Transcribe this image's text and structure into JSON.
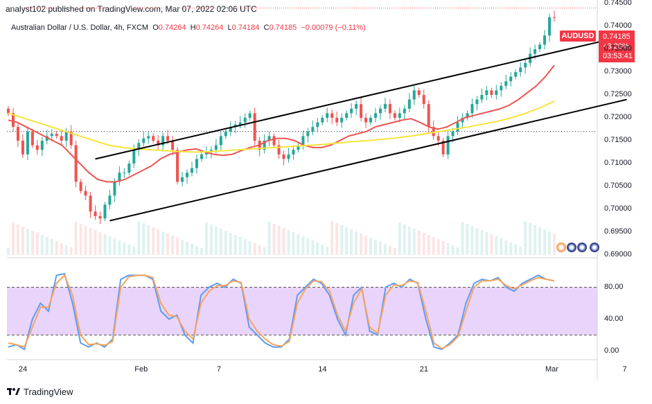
{
  "header": {
    "publisher": "analyst102 published on TradingView.com, Mar 07, 2022 02:06 UTC"
  },
  "symbol_line": {
    "name": "Australian Dollar / U.S. Dollar, 4h, FXCM",
    "o_label": "O",
    "o": "0.74264",
    "h_label": "H",
    "h": "0.74264",
    "l_label": "L",
    "l": "0.74184",
    "c_label": "C",
    "c": "0.74185",
    "change": "−0.00079 (−0.11%)"
  },
  "price_tag": {
    "ticker": "AUDUSD",
    "price": "0.74185",
    "change": "+3.20%",
    "countdown": "03:53:41"
  },
  "footer": {
    "brand": "TradingView"
  },
  "colors": {
    "up": "#26a69a",
    "down": "#ef5350",
    "ema_fast": "#ef5350",
    "ema_slow": "#f5e43a",
    "stoch_k": "#5b9cf6",
    "stoch_d": "#f7a35c",
    "stoch_band": "#e1c6f9",
    "trendline": "#000000"
  },
  "chart_data": [
    {
      "type": "candlestick",
      "title": "",
      "timeframe": "4h",
      "xlabel": "",
      "ylabel": "",
      "ylim": [
        0.69,
        0.745
      ],
      "y_ticks": [
        "0.74500",
        "0.74000",
        "0.73500",
        "0.73000",
        "0.72500",
        "0.72000",
        "0.71500",
        "0.71000",
        "0.70500",
        "0.70000",
        "0.69500",
        "0.69000"
      ],
      "y_tick_values": [
        0.745,
        0.74,
        0.735,
        0.73,
        0.725,
        0.72,
        0.715,
        0.71,
        0.705,
        0.7,
        0.695,
        0.69
      ],
      "x_ticks": [
        "24",
        "Feb",
        "7",
        "14",
        "21",
        "Mar",
        "7"
      ],
      "x_tick_index": [
        3,
        27,
        44,
        65,
        86,
        112,
        128
      ],
      "closes": [
        0.721,
        0.718,
        0.715,
        0.712,
        0.717,
        0.714,
        0.713,
        0.715,
        0.716,
        0.7165,
        0.716,
        0.715,
        0.717,
        0.714,
        0.706,
        0.704,
        0.703,
        0.6995,
        0.6985,
        0.698,
        0.701,
        0.703,
        0.706,
        0.708,
        0.708,
        0.71,
        0.713,
        0.7145,
        0.7155,
        0.716,
        0.715,
        0.714,
        0.716,
        0.715,
        0.713,
        0.706,
        0.707,
        0.708,
        0.709,
        0.711,
        0.712,
        0.7125,
        0.713,
        0.714,
        0.716,
        0.717,
        0.718,
        0.7185,
        0.719,
        0.72,
        0.721,
        0.715,
        0.713,
        0.715,
        0.716,
        0.714,
        0.712,
        0.711,
        0.712,
        0.713,
        0.714,
        0.716,
        0.717,
        0.718,
        0.719,
        0.72,
        0.721,
        0.72,
        0.719,
        0.72,
        0.721,
        0.722,
        0.723,
        0.72,
        0.719,
        0.72,
        0.721,
        0.722,
        0.723,
        0.721,
        0.72,
        0.721,
        0.722,
        0.724,
        0.726,
        0.725,
        0.723,
        0.718,
        0.716,
        0.715,
        0.712,
        0.716,
        0.717,
        0.719,
        0.72,
        0.721,
        0.723,
        0.724,
        0.725,
        0.726,
        0.725,
        0.726,
        0.727,
        0.728,
        0.729,
        0.73,
        0.731,
        0.732,
        0.734,
        0.735,
        0.736,
        0.738,
        0.742,
        0.74185
      ],
      "series": [
        {
          "name": "",
          "role": "ema_fast",
          "values": [
            0.7195,
            0.719,
            0.718,
            0.717,
            0.716,
            0.715,
            0.714,
            0.712,
            0.71,
            0.708,
            0.7065,
            0.706,
            0.706,
            0.7065,
            0.7075,
            0.7085,
            0.7095,
            0.711,
            0.712,
            0.7125,
            0.713,
            0.7132,
            0.7125,
            0.712,
            0.7118,
            0.712,
            0.7128,
            0.7135,
            0.714,
            0.715,
            0.7155,
            0.7155,
            0.715,
            0.714,
            0.7135,
            0.7135,
            0.714,
            0.715,
            0.716,
            0.7165,
            0.717,
            0.718,
            0.7185,
            0.719,
            0.7195,
            0.7198,
            0.719,
            0.718,
            0.7175,
            0.718,
            0.719,
            0.72,
            0.7205,
            0.721,
            0.7215,
            0.722,
            0.7228,
            0.724,
            0.7255,
            0.727,
            0.729,
            0.7315
          ]
        },
        {
          "name": "",
          "role": "ema_slow",
          "values": [
            0.721,
            0.72,
            0.719,
            0.718,
            0.717,
            0.716,
            0.715,
            0.714,
            0.7135,
            0.7132,
            0.713,
            0.7128,
            0.7126,
            0.7125,
            0.7126,
            0.7128,
            0.713,
            0.7132,
            0.7134,
            0.7136,
            0.7138,
            0.714,
            0.7142,
            0.7145,
            0.7148,
            0.715,
            0.7153,
            0.7156,
            0.716,
            0.7165,
            0.717,
            0.7175,
            0.718,
            0.7186,
            0.7192,
            0.72,
            0.721,
            0.7222,
            0.7236
          ]
        }
      ],
      "channel": [
        {
          "name": "upper",
          "points": [
            [
              18,
              0.711
            ],
            [
              128,
              0.738
            ]
          ]
        },
        {
          "name": "lower",
          "points": [
            [
              21,
              0.6975
            ],
            [
              128,
              0.724
            ]
          ]
        }
      ],
      "dotted_line": 0.717
    },
    {
      "type": "line",
      "title": "",
      "indicator": "stochastic",
      "ylim": [
        -10,
        110
      ],
      "y_ticks": [
        "80.00",
        "40.00",
        "0.00"
      ],
      "y_tick_values": [
        80,
        40,
        0
      ],
      "band": [
        20,
        80
      ],
      "series": [
        {
          "name": "",
          "role": "k",
          "values": [
            5,
            8,
            2,
            40,
            60,
            50,
            95,
            97,
            60,
            10,
            5,
            10,
            5,
            15,
            90,
            95,
            95,
            95,
            90,
            50,
            40,
            45,
            20,
            10,
            70,
            80,
            85,
            80,
            90,
            85,
            30,
            20,
            10,
            5,
            5,
            15,
            70,
            80,
            90,
            85,
            70,
            40,
            20,
            70,
            80,
            25,
            20,
            80,
            85,
            80,
            90,
            85,
            40,
            5,
            2,
            10,
            20,
            60,
            85,
            90,
            88,
            92,
            80,
            75,
            85,
            90,
            95,
            90,
            88
          ]
        },
        {
          "name": "",
          "role": "d",
          "values": [
            10,
            8,
            5,
            30,
            55,
            55,
            85,
            95,
            70,
            20,
            8,
            9,
            7,
            12,
            80,
            93,
            95,
            95,
            92,
            60,
            45,
            43,
            25,
            15,
            60,
            75,
            82,
            82,
            88,
            86,
            40,
            25,
            15,
            8,
            6,
            12,
            60,
            78,
            88,
            87,
            75,
            45,
            25,
            60,
            78,
            30,
            22,
            70,
            83,
            82,
            88,
            86,
            50,
            10,
            3,
            8,
            18,
            50,
            80,
            88,
            88,
            90,
            82,
            78,
            83,
            88,
            92,
            90,
            88
          ]
        }
      ]
    }
  ]
}
